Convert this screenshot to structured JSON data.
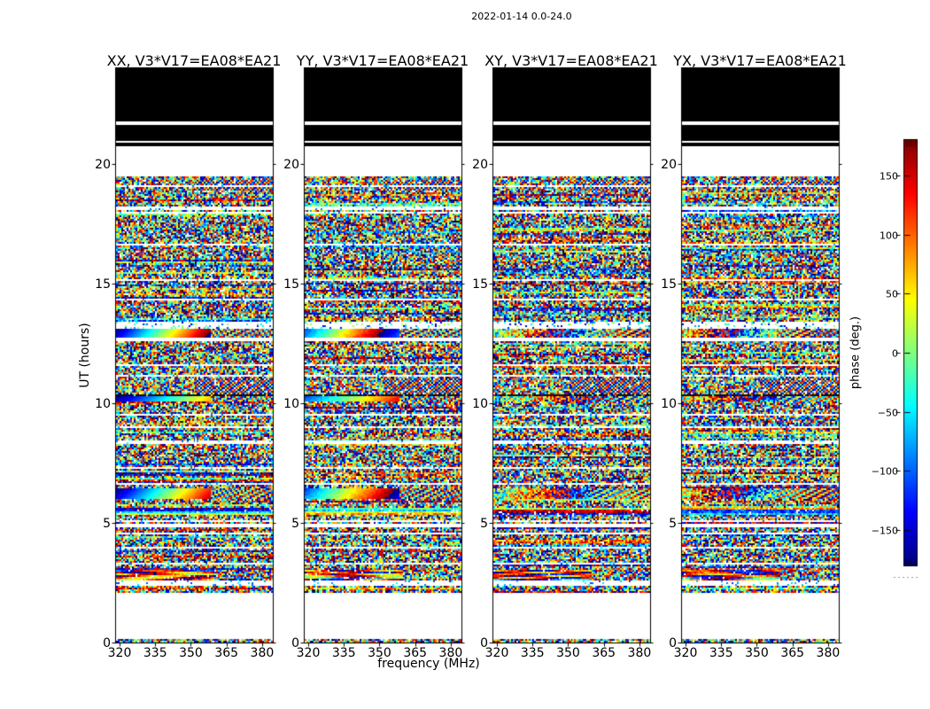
{
  "chart_data": {
    "type": "heatmap",
    "title": "2022-01-14 0.0-24.0",
    "xlabel": "frequency (MHz)",
    "ylabel": "UT (hours)",
    "x_range": [
      318.5,
      384.5
    ],
    "y_range": [
      0,
      24
    ],
    "x_ticks": [
      320,
      335,
      350,
      365,
      380
    ],
    "x_tick_labels": [
      "320",
      "335",
      "350",
      "365",
      "380"
    ],
    "y_ticks": [
      0,
      5,
      10,
      15,
      20
    ],
    "y_tick_labels": [
      "0",
      "5",
      "10",
      "15",
      "20"
    ],
    "grid": false,
    "colormap": "jet",
    "colorbar": {
      "label": "phase (deg.)",
      "range": [
        -180,
        180
      ],
      "tick_values": [
        150,
        100,
        50,
        0,
        -50,
        -100,
        -150
      ],
      "tick_labels": [
        "150",
        "100",
        "50",
        "0",
        "−50",
        "−100",
        "−150"
      ]
    },
    "panels": [
      {
        "id": "XX",
        "title": "XX, V3*V17=EA08*EA21",
        "coherence": 1.0,
        "phase_offset": 0.0
      },
      {
        "id": "YY",
        "title": "YY, V3*V17=EA08*EA21",
        "coherence": 0.95,
        "phase_offset": 0.18
      },
      {
        "id": "XY",
        "title": "XY, V3*V17=EA08*EA21",
        "coherence": 0.45,
        "phase_offset": 0.36
      },
      {
        "id": "YX",
        "title": "YX, V3*V17=EA08*EA21",
        "coherence": 0.45,
        "phase_offset": 0.55
      }
    ],
    "time_bands": [
      {
        "from": 24.0,
        "to": 21.8,
        "style": "black"
      },
      {
        "from": 21.8,
        "to": 21.73,
        "style": "white"
      },
      {
        "from": 21.73,
        "to": 21.68,
        "style": "black"
      },
      {
        "from": 21.68,
        "to": 21.62,
        "style": "white"
      },
      {
        "from": 21.62,
        "to": 20.96,
        "style": "black"
      },
      {
        "from": 20.96,
        "to": 20.9,
        "style": "white"
      },
      {
        "from": 20.9,
        "to": 20.72,
        "style": "black"
      },
      {
        "from": 20.72,
        "to": 19.5,
        "style": "white"
      },
      {
        "from": 19.5,
        "to": 2.05,
        "style": "noise"
      },
      {
        "from": 19.3,
        "to": 18.9,
        "style": "wavy"
      },
      {
        "from": 13.38,
        "to": 13.14,
        "style": "dots"
      },
      {
        "from": 13.14,
        "to": 12.72,
        "style": "ramp",
        "cycles": 1.6
      },
      {
        "from": 12.72,
        "to": 12.6,
        "style": "white"
      },
      {
        "from": 11.05,
        "to": 10.4,
        "style": "wavy"
      },
      {
        "from": 10.3,
        "to": 10.1,
        "style": "ramp",
        "cycles": 1.1
      },
      {
        "from": 6.42,
        "to": 5.98,
        "style": "ramp",
        "cycles": 1.4
      },
      {
        "from": 5.62,
        "to": 5.3,
        "style": "stripes"
      },
      {
        "from": 4.98,
        "to": 4.84,
        "style": "white"
      },
      {
        "from": 3.05,
        "to": 2.35,
        "style": "streaks"
      },
      {
        "from": 2.05,
        "to": 0.16,
        "style": "white"
      },
      {
        "from": 0.16,
        "to": 0.0,
        "style": "noise"
      }
    ],
    "flag_lines_hours": [
      19.05,
      18.15,
      17.98,
      16.62,
      15.18,
      14.32,
      11.62,
      11.15,
      9.52,
      9.02,
      8.37,
      7.32,
      6.62,
      5.06,
      4.55,
      3.97,
      3.32,
      2.52,
      2.42
    ],
    "dark_lines_hours": [
      10.32,
      10.08
    ],
    "seed": 20220114
  }
}
